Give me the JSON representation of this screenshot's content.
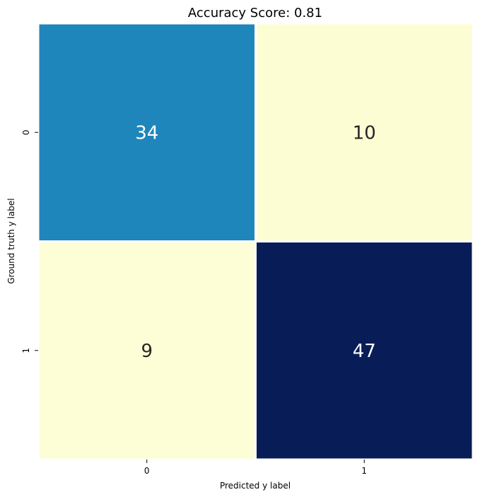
{
  "chart_data": {
    "type": "heatmap",
    "title": "Accuracy Score: 0.81",
    "xlabel": "Predicted y label",
    "ylabel": "Ground truth y label",
    "x_categories": [
      "0",
      "1"
    ],
    "y_categories": [
      "0",
      "1"
    ],
    "values": [
      [
        34,
        10
      ],
      [
        9,
        47
      ]
    ],
    "colormap": "YlGnBu",
    "colors": {
      "cell_0_0": "#1f86bb",
      "cell_0_1": "#fcfdd3",
      "cell_1_0": "#fdfed6",
      "cell_1_1": "#081d58",
      "cell_border": "#ffffff",
      "text_dark": "#262626",
      "text_light": "#ffffff"
    },
    "colorbar": false,
    "grid": false
  }
}
